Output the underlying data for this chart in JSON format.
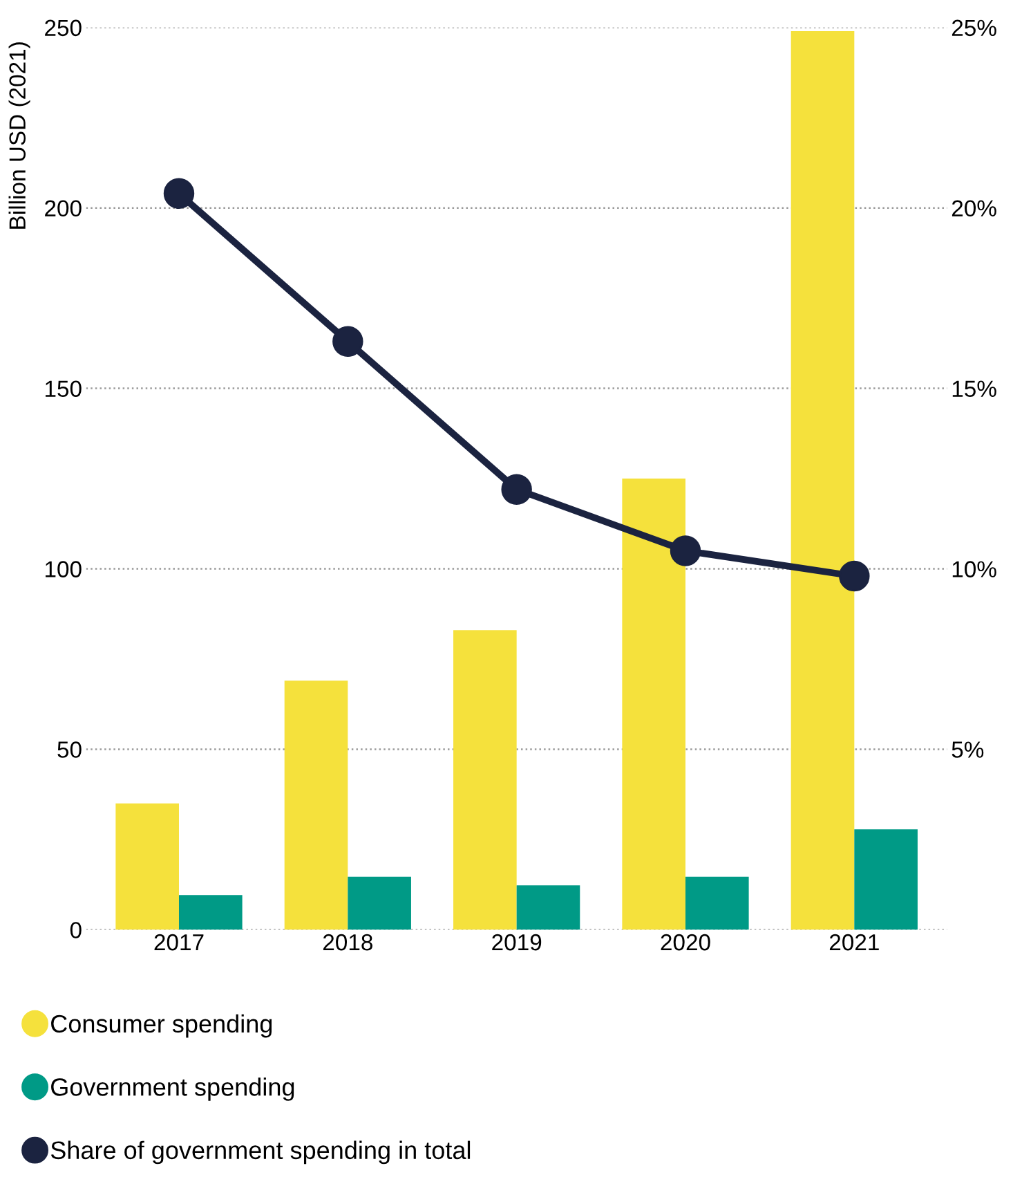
{
  "chart_data": {
    "type": "bar",
    "ylabel": "Billion USD (2021)",
    "categories": [
      "2017",
      "2018",
      "2019",
      "2020",
      "2021"
    ],
    "series": [
      {
        "name": "Consumer spending",
        "color": "#f5e13c",
        "values": [
          35,
          69,
          83,
          125,
          249
        ]
      },
      {
        "name": "Government spending",
        "color": "#009a86",
        "values": [
          9.6,
          14.7,
          12.3,
          14.7,
          27.8
        ]
      },
      {
        "name": "Share of government spending in total",
        "type": "line",
        "axis": "y2",
        "color": "#1b2340",
        "marker": "circle",
        "values": [
          20.4,
          16.3,
          12.2,
          10.5,
          9.8
        ]
      }
    ],
    "ylim": [
      0,
      250
    ],
    "yticks": [
      0,
      50,
      100,
      150,
      200,
      250
    ],
    "y2lim": [
      0,
      25
    ],
    "y2ticks": [
      {
        "value": 5,
        "label": "5%"
      },
      {
        "value": 10,
        "label": "10%"
      },
      {
        "value": 15,
        "label": "15%"
      },
      {
        "value": 20,
        "label": "20%"
      },
      {
        "value": 25,
        "label": "25%"
      }
    ],
    "grid": "y",
    "legend": "bottom"
  }
}
